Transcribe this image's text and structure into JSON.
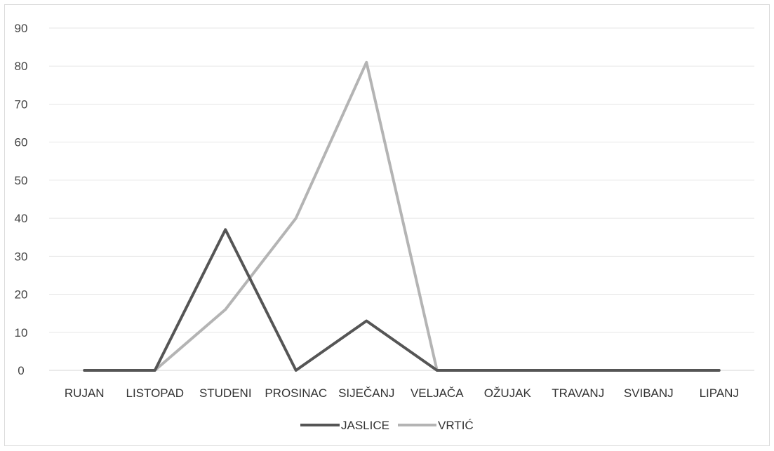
{
  "chart_data": {
    "type": "line",
    "categories": [
      "RUJAN",
      "LISTOPAD",
      "STUDENI",
      "PROSINAC",
      "SIJEČANJ",
      "VELJAČA",
      "OŽUJAK",
      "TRAVANJ",
      "SVIBANJ",
      "LIPANJ"
    ],
    "series": [
      {
        "name": "JASLICE",
        "color": "#555555",
        "values": [
          0,
          0,
          37,
          0,
          13,
          0,
          0,
          0,
          0,
          0
        ]
      },
      {
        "name": "VRTIĆ",
        "color": "#b4b4b4",
        "values": [
          0,
          0,
          16,
          40,
          81,
          0,
          0,
          0,
          0,
          0
        ]
      }
    ],
    "yticks": [
      "0",
      "10",
      "20",
      "30",
      "40",
      "50",
      "60",
      "70",
      "80",
      "90"
    ],
    "ylim": [
      0,
      90
    ],
    "grid": true,
    "legend_position": "bottom",
    "gridline_color": "#e6e6e6"
  }
}
